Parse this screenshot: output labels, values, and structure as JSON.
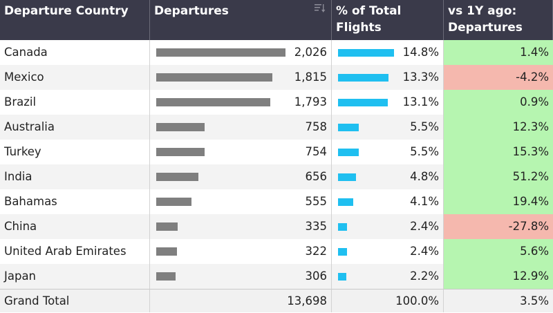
{
  "headers": {
    "country": "Departure Country",
    "departures": "Departures",
    "pct": "% of Total Flights",
    "yoy": "vs 1Y ago: Departures"
  },
  "rows": [
    {
      "country": "Canada",
      "departures": 2026,
      "departures_label": "2,026",
      "pct": 14.8,
      "pct_label": "14.8%",
      "yoy": 1.4,
      "yoy_label": "1.4%"
    },
    {
      "country": "Mexico",
      "departures": 1815,
      "departures_label": "1,815",
      "pct": 13.3,
      "pct_label": "13.3%",
      "yoy": -4.2,
      "yoy_label": "-4.2%"
    },
    {
      "country": "Brazil",
      "departures": 1793,
      "departures_label": "1,793",
      "pct": 13.1,
      "pct_label": "13.1%",
      "yoy": 0.9,
      "yoy_label": "0.9%"
    },
    {
      "country": "Australia",
      "departures": 758,
      "departures_label": "758",
      "pct": 5.5,
      "pct_label": "5.5%",
      "yoy": 12.3,
      "yoy_label": "12.3%"
    },
    {
      "country": "Turkey",
      "departures": 754,
      "departures_label": "754",
      "pct": 5.5,
      "pct_label": "5.5%",
      "yoy": 15.3,
      "yoy_label": "15.3%"
    },
    {
      "country": "India",
      "departures": 656,
      "departures_label": "656",
      "pct": 4.8,
      "pct_label": "4.8%",
      "yoy": 51.2,
      "yoy_label": "51.2%"
    },
    {
      "country": "Bahamas",
      "departures": 555,
      "departures_label": "555",
      "pct": 4.1,
      "pct_label": "4.1%",
      "yoy": 19.4,
      "yoy_label": "19.4%"
    },
    {
      "country": "China",
      "departures": 335,
      "departures_label": "335",
      "pct": 2.4,
      "pct_label": "2.4%",
      "yoy": -27.8,
      "yoy_label": "-27.8%"
    },
    {
      "country": "United Arab Emirates",
      "departures": 322,
      "departures_label": "322",
      "pct": 2.4,
      "pct_label": "2.4%",
      "yoy": 5.6,
      "yoy_label": "5.6%"
    },
    {
      "country": "Japan",
      "departures": 306,
      "departures_label": "306",
      "pct": 2.2,
      "pct_label": "2.2%",
      "yoy": 12.9,
      "yoy_label": "12.9%"
    }
  ],
  "total": {
    "label": "Grand Total",
    "departures": "13,698",
    "pct": "100.0%",
    "yoy": "3.5%"
  },
  "colors": {
    "header_bg": "#3a3a4a",
    "dep_bar": "#7f7f7f",
    "pct_bar": "#1fbff0",
    "positive": "#b6f5b0",
    "negative": "#f5b8ae"
  },
  "icons": {
    "sort": "sort-descending-icon"
  }
}
